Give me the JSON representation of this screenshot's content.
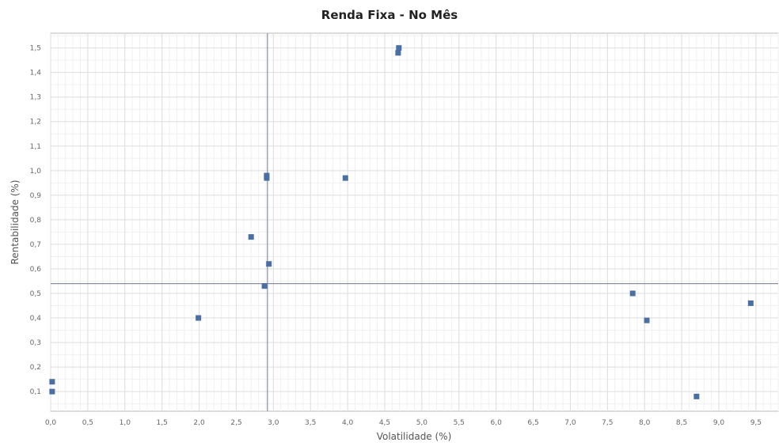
{
  "chart_data": {
    "type": "scatter",
    "title": "Renda Fixa - No Mês",
    "xlabel": "Volatilidade (%)",
    "ylabel": "Rentabilidade (%)",
    "xlim": [
      0.0,
      9.8
    ],
    "ylim": [
      0.02,
      1.56
    ],
    "x_ticks": [
      0.0,
      0.5,
      1.0,
      1.5,
      2.0,
      2.5,
      3.0,
      3.5,
      4.0,
      4.5,
      5.0,
      5.5,
      6.0,
      6.5,
      7.0,
      7.5,
      8.0,
      8.5,
      9.0,
      9.5
    ],
    "x_tick_labels": [
      "0,0",
      "0,5",
      "1,0",
      "1,5",
      "2,0",
      "2,5",
      "3,0",
      "3,5",
      "4,0",
      "4,5",
      "5,0",
      "5,5",
      "6,0",
      "6,5",
      "7,0",
      "7,5",
      "8,0",
      "8,5",
      "9,0",
      "9,5"
    ],
    "y_ticks": [
      0.1,
      0.2,
      0.3,
      0.4,
      0.5,
      0.6,
      0.7,
      0.8,
      0.9,
      1.0,
      1.1,
      1.2,
      1.3,
      1.4,
      1.5
    ],
    "y_tick_labels": [
      "0,1",
      "0,2",
      "0,3",
      "0,4",
      "0,5",
      "0,6",
      "0,7",
      "0,8",
      "0,9",
      "1,0",
      "1,1",
      "1,2",
      "1,3",
      "1,4",
      "1,5"
    ],
    "reference_lines": {
      "x": 2.92,
      "y": 0.54
    },
    "grid": true,
    "marker_color": "#4a6fa5",
    "points": [
      {
        "x": 0.02,
        "y": 0.14
      },
      {
        "x": 0.02,
        "y": 0.1
      },
      {
        "x": 1.99,
        "y": 0.4
      },
      {
        "x": 2.7,
        "y": 0.73
      },
      {
        "x": 2.88,
        "y": 0.53
      },
      {
        "x": 2.91,
        "y": 0.98
      },
      {
        "x": 2.91,
        "y": 0.97
      },
      {
        "x": 2.94,
        "y": 0.62
      },
      {
        "x": 3.97,
        "y": 0.97
      },
      {
        "x": 4.69,
        "y": 1.5
      },
      {
        "x": 4.68,
        "y": 1.48
      },
      {
        "x": 7.84,
        "y": 0.5
      },
      {
        "x": 8.03,
        "y": 0.39
      },
      {
        "x": 8.7,
        "y": 0.08
      },
      {
        "x": 9.43,
        "y": 0.46
      }
    ]
  }
}
